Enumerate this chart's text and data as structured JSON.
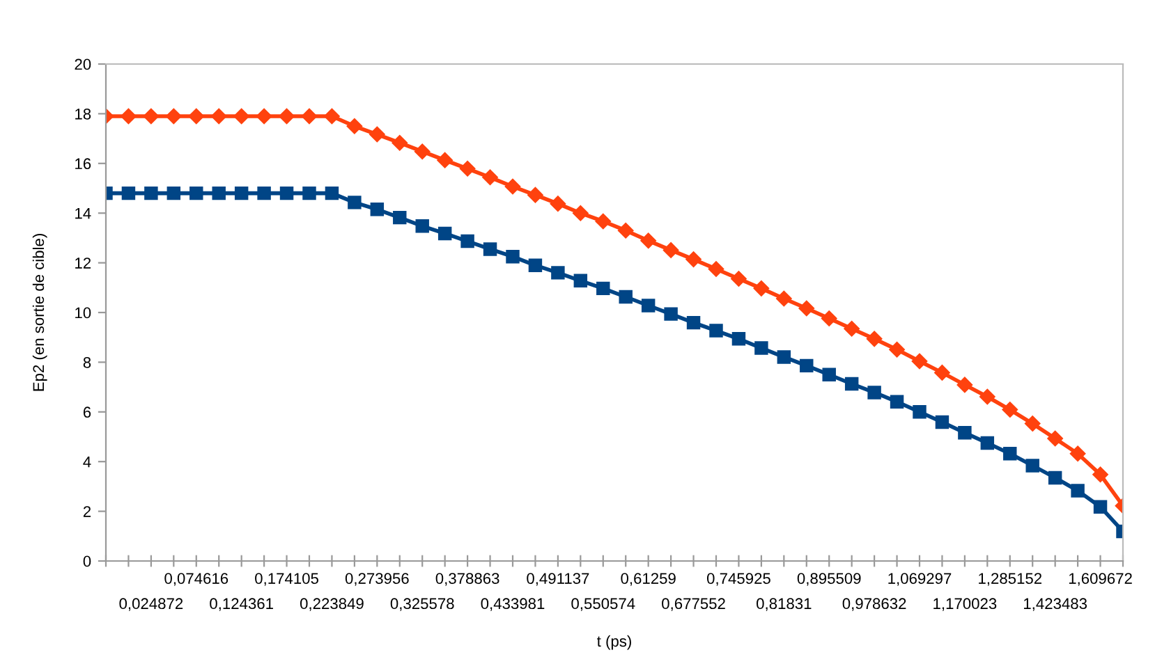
{
  "chart_data": {
    "type": "line",
    "xlabel": "t (ps)",
    "ylabel": "Ep2 (en sortie de cible)",
    "categories": [
      null,
      null,
      "0,024872",
      null,
      "0,074616",
      null,
      "0,124361",
      null,
      "0,174105",
      null,
      "0,223849",
      null,
      "0,273956",
      null,
      "0,325578",
      null,
      "0,378863",
      null,
      "0,433981",
      null,
      "0,491137",
      null,
      "0,550574",
      null,
      "0,61259",
      null,
      "0,677552",
      null,
      "0,745925",
      null,
      "0,81831",
      null,
      "0,895509",
      null,
      "0,978632",
      null,
      "1,069297",
      null,
      "1,170023",
      null,
      "1,285152",
      null,
      "1,423483",
      null,
      "1,609672",
      null
    ],
    "series": [
      {
        "color": "#ff420e",
        "marker": "diamond",
        "values": [
          17.9,
          17.9,
          17.9,
          17.9,
          17.9,
          17.9,
          17.9,
          17.9,
          17.9,
          17.9,
          17.9,
          17.5,
          17.17,
          16.83,
          16.48,
          16.13,
          15.79,
          15.44,
          15.07,
          14.73,
          14.38,
          14.0,
          13.67,
          13.3,
          12.89,
          12.51,
          12.14,
          11.75,
          11.36,
          10.97,
          10.56,
          10.17,
          9.76,
          9.35,
          8.94,
          8.51,
          8.04,
          7.58,
          7.09,
          6.61,
          6.09,
          5.53,
          4.93,
          4.32,
          3.48,
          2.22
        ]
      },
      {
        "color": "#004586",
        "marker": "square",
        "values": [
          14.8,
          14.8,
          14.8,
          14.8,
          14.8,
          14.8,
          14.8,
          14.8,
          14.8,
          14.8,
          14.8,
          14.43,
          14.15,
          13.82,
          13.48,
          13.18,
          12.87,
          12.55,
          12.25,
          11.9,
          11.6,
          11.28,
          10.97,
          10.63,
          10.28,
          9.94,
          9.59,
          9.27,
          8.94,
          8.57,
          8.21,
          7.86,
          7.5,
          7.13,
          6.78,
          6.41,
          6.0,
          5.59,
          5.16,
          4.75,
          4.32,
          3.84,
          3.35,
          2.83,
          2.18,
          1.19
        ]
      }
    ],
    "ylim": [
      0,
      20
    ],
    "yticks": [
      0,
      2,
      4,
      6,
      8,
      10,
      12,
      14,
      16,
      18,
      20
    ],
    "grid": false,
    "legend": false,
    "line_style": "solid"
  }
}
